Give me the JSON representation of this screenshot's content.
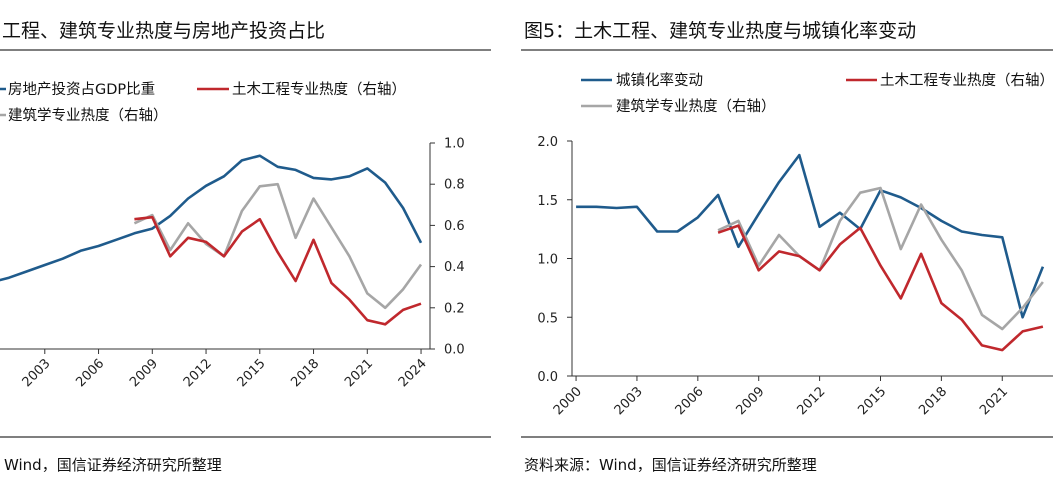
{
  "chart_data": [
    {
      "type": "line",
      "title": "工程、建筑专业热度与房地产投资占比",
      "source": "Wind，国信证券经济研究所整理",
      "x_tick_labels": [
        "2003",
        "2006",
        "2009",
        "2012",
        "2015",
        "2018",
        "2021",
        "2024"
      ],
      "y_right_ticks": [
        "1.0",
        "0.8",
        "0.6",
        "0.4",
        "0.2",
        "0.0"
      ],
      "y_right_range": [
        0,
        1.0
      ],
      "left_axis_range": [
        0,
        13
      ],
      "x_range": [
        2000.5,
        2024.5
      ],
      "grid": false,
      "legend_position": "top",
      "series": [
        {
          "name": "房地产投资占GDP比重",
          "color": "#1f5b8c",
          "axis": "left",
          "points": [
            [
              2000,
              4.2
            ],
            [
              2001,
              4.5
            ],
            [
              2002,
              4.9
            ],
            [
              2003,
              5.3
            ],
            [
              2004,
              5.7
            ],
            [
              2005,
              6.2
            ],
            [
              2006,
              6.5
            ],
            [
              2007,
              6.9
            ],
            [
              2008,
              7.3
            ],
            [
              2009,
              7.6
            ],
            [
              2010,
              8.4
            ],
            [
              2011,
              9.5
            ],
            [
              2012,
              10.3
            ],
            [
              2013,
              10.9
            ],
            [
              2014,
              11.9
            ],
            [
              2015,
              12.2
            ],
            [
              2016,
              11.5
            ],
            [
              2017,
              11.3
            ],
            [
              2018,
              10.8
            ],
            [
              2019,
              10.7
            ],
            [
              2020,
              10.9
            ],
            [
              2021,
              11.4
            ],
            [
              2022,
              10.5
            ],
            [
              2023,
              8.9
            ],
            [
              2024,
              6.7
            ]
          ]
        },
        {
          "name": "土木工程专业热度（右轴）",
          "color": "#c0282d",
          "axis": "right",
          "points": [
            [
              2008,
              0.63
            ],
            [
              2009,
              0.64
            ],
            [
              2010,
              0.45
            ],
            [
              2011,
              0.54
            ],
            [
              2012,
              0.52
            ],
            [
              2013,
              0.45
            ],
            [
              2014,
              0.57
            ],
            [
              2015,
              0.63
            ],
            [
              2016,
              0.47
            ],
            [
              2017,
              0.33
            ],
            [
              2018,
              0.53
            ],
            [
              2019,
              0.32
            ],
            [
              2020,
              0.24
            ],
            [
              2021,
              0.14
            ],
            [
              2022,
              0.12
            ],
            [
              2023,
              0.19
            ],
            [
              2024,
              0.22
            ]
          ]
        },
        {
          "name": "建筑学专业热度（右轴）",
          "color": "#a6a6a6",
          "axis": "right",
          "points": [
            [
              2008,
              0.61
            ],
            [
              2009,
              0.65
            ],
            [
              2010,
              0.48
            ],
            [
              2011,
              0.61
            ],
            [
              2012,
              0.51
            ],
            [
              2013,
              0.45
            ],
            [
              2014,
              0.67
            ],
            [
              2015,
              0.79
            ],
            [
              2016,
              0.8
            ],
            [
              2017,
              0.54
            ],
            [
              2018,
              0.73
            ],
            [
              2019,
              0.59
            ],
            [
              2020,
              0.45
            ],
            [
              2021,
              0.27
            ],
            [
              2022,
              0.2
            ],
            [
              2023,
              0.29
            ],
            [
              2024,
              0.41
            ]
          ]
        }
      ]
    },
    {
      "type": "line",
      "title": "图5：土木工程、建筑专业热度与城镇化率变动",
      "source": "资料来源：Wind，国信证券经济研究所整理",
      "x_tick_labels": [
        "2000",
        "2003",
        "2006",
        "2009",
        "2012",
        "2015",
        "2018",
        "2021"
      ],
      "y_left_ticks": [
        "2.0",
        "1.5",
        "1.0",
        "0.5",
        "0.0"
      ],
      "y_left_range": [
        0,
        2.0
      ],
      "right_axis_range": [
        0,
        1.0
      ],
      "x_range": [
        1999.8,
        2023.5
      ],
      "grid": false,
      "legend_position": "top",
      "series": [
        {
          "name": "城镇化率变动",
          "color": "#1f5b8c",
          "axis": "left",
          "points": [
            [
              2000,
              1.44
            ],
            [
              2001,
              1.44
            ],
            [
              2002,
              1.43
            ],
            [
              2003,
              1.44
            ],
            [
              2004,
              1.23
            ],
            [
              2005,
              1.23
            ],
            [
              2006,
              1.35
            ],
            [
              2007,
              1.54
            ],
            [
              2008,
              1.1
            ],
            [
              2009,
              1.38
            ],
            [
              2010,
              1.65
            ],
            [
              2011,
              1.88
            ],
            [
              2012,
              1.27
            ],
            [
              2013,
              1.39
            ],
            [
              2014,
              1.25
            ],
            [
              2015,
              1.58
            ],
            [
              2016,
              1.52
            ],
            [
              2017,
              1.43
            ],
            [
              2018,
              1.32
            ],
            [
              2019,
              1.23
            ],
            [
              2020,
              1.2
            ],
            [
              2021,
              1.18
            ],
            [
              2022,
              0.5
            ],
            [
              2023,
              0.93
            ]
          ]
        },
        {
          "name": "土木工程专业热度（右轴）",
          "color": "#c0282d",
          "axis": "right",
          "points": [
            [
              2007,
              0.61
            ],
            [
              2008,
              0.64
            ],
            [
              2009,
              0.45
            ],
            [
              2010,
              0.53
            ],
            [
              2011,
              0.51
            ],
            [
              2012,
              0.45
            ],
            [
              2013,
              0.56
            ],
            [
              2014,
              0.63
            ],
            [
              2015,
              0.47
            ],
            [
              2016,
              0.33
            ],
            [
              2017,
              0.52
            ],
            [
              2018,
              0.31
            ],
            [
              2019,
              0.24
            ],
            [
              2020,
              0.13
            ],
            [
              2021,
              0.11
            ],
            [
              2022,
              0.19
            ],
            [
              2023,
              0.21
            ]
          ]
        },
        {
          "name": "建筑学专业热度（右轴）",
          "color": "#a6a6a6",
          "axis": "right",
          "points": [
            [
              2007,
              0.62
            ],
            [
              2008,
              0.66
            ],
            [
              2009,
              0.47
            ],
            [
              2010,
              0.6
            ],
            [
              2011,
              0.51
            ],
            [
              2012,
              0.45
            ],
            [
              2013,
              0.66
            ],
            [
              2014,
              0.78
            ],
            [
              2015,
              0.8
            ],
            [
              2016,
              0.54
            ],
            [
              2017,
              0.73
            ],
            [
              2018,
              0.58
            ],
            [
              2019,
              0.45
            ],
            [
              2020,
              0.26
            ],
            [
              2021,
              0.2
            ],
            [
              2022,
              0.29
            ],
            [
              2023,
              0.4
            ]
          ]
        }
      ]
    }
  ]
}
